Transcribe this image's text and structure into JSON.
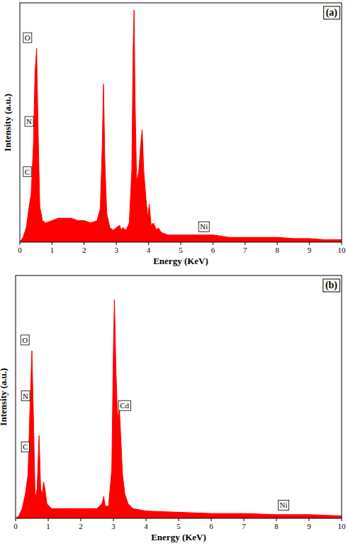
{
  "chart_data": [
    {
      "type": "area",
      "title": "(a)",
      "x_label": "Energy (KeV)",
      "y_label": "Intensity (a.u.)",
      "xlim": [
        0,
        10
      ],
      "xticks": [
        0,
        1,
        2,
        3,
        4,
        5,
        6,
        7,
        8,
        9,
        10
      ],
      "ylim": [
        0,
        100
      ],
      "tick_labels": "x",
      "x": [
        0,
        0.1,
        0.2,
        0.28,
        0.35,
        0.42,
        0.47,
        0.52,
        0.57,
        0.62,
        0.7,
        0.8,
        1.0,
        1.2,
        1.4,
        1.6,
        1.8,
        2.0,
        2.2,
        2.4,
        2.5,
        2.56,
        2.6,
        2.64,
        2.7,
        2.8,
        2.9,
        3.0,
        3.1,
        3.15,
        3.2,
        3.3,
        3.4,
        3.48,
        3.52,
        3.55,
        3.58,
        3.63,
        3.7,
        3.75,
        3.8,
        3.85,
        3.92,
        3.98,
        4.02,
        4.08,
        4.15,
        4.25,
        4.3,
        4.4,
        4.6,
        5.0,
        5.5,
        6.0,
        6.5,
        7.0,
        7.5,
        8.0,
        8.5,
        9.0,
        9.5,
        10
      ],
      "series": [
        {
          "color": "#ff0000",
          "values": [
            0,
            2,
            6,
            14,
            20,
            40,
            70,
            81,
            45,
            15,
            9,
            8,
            9,
            10,
            10,
            10,
            9,
            9,
            8,
            9,
            14,
            40,
            66,
            35,
            12,
            6,
            5,
            6,
            7,
            5,
            6,
            5,
            8,
            30,
            80,
            97,
            60,
            25,
            30,
            40,
            47,
            30,
            18,
            10,
            16,
            7,
            8,
            5,
            6,
            4,
            3,
            3,
            3,
            3,
            2,
            2,
            2,
            2,
            1.5,
            1.5,
            1,
            1
          ]
        }
      ],
      "annotations": [
        {
          "text": "O",
          "x": 0.15,
          "y": 85
        },
        {
          "text": "N",
          "x": 0.2,
          "y": 50
        },
        {
          "text": "C",
          "x": 0.15,
          "y": 29
        },
        {
          "text": "Ni",
          "x": 5.6,
          "y": 6
        }
      ]
    },
    {
      "type": "area",
      "title": "(b)",
      "x_label": "Energy (KeV)",
      "y_label": "Intensity (a.u.)",
      "xlim": [
        0,
        10
      ],
      "xticks": [
        0,
        1,
        2,
        3,
        4,
        5,
        6,
        7,
        8,
        9,
        10
      ],
      "ylim": [
        0,
        100
      ],
      "tick_labels": "x",
      "x": [
        0,
        0.1,
        0.2,
        0.3,
        0.38,
        0.44,
        0.5,
        0.55,
        0.6,
        0.66,
        0.72,
        0.77,
        0.82,
        0.86,
        0.9,
        0.96,
        1.1,
        1.4,
        1.8,
        2.2,
        2.5,
        2.65,
        2.7,
        2.75,
        2.85,
        2.95,
        3.0,
        3.03,
        3.08,
        3.13,
        3.18,
        3.22,
        3.28,
        3.35,
        3.45,
        3.6,
        4.0,
        5.0,
        6.0,
        7.0,
        8.0,
        9.0,
        10
      ],
      "series": [
        {
          "color": "#ff0000",
          "values": [
            0,
            1,
            4,
            10,
            18,
            45,
            69,
            40,
            8,
            12,
            34,
            12,
            10,
            15,
            12,
            6,
            4,
            4,
            4,
            4,
            4,
            6,
            9,
            5,
            5,
            20,
            70,
            90,
            60,
            40,
            47,
            35,
            18,
            10,
            6,
            4,
            3,
            2.5,
            2,
            2,
            1.5,
            1.5,
            1
          ]
        }
      ],
      "annotations": [
        {
          "text": "O",
          "x": 0.2,
          "y": 73
        },
        {
          "text": "N",
          "x": 0.22,
          "y": 50
        },
        {
          "text": "C",
          "x": 0.22,
          "y": 29
        },
        {
          "text": "Cd",
          "x": 3.2,
          "y": 46
        },
        {
          "text": "Ni",
          "x": 8.1,
          "y": 5
        }
      ]
    }
  ]
}
